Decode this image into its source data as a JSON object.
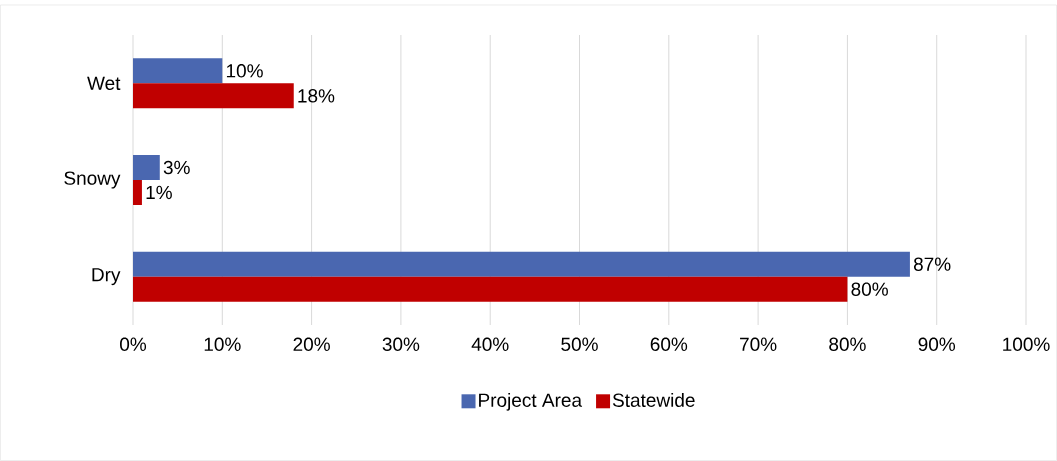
{
  "chart_data": {
    "type": "bar",
    "orientation": "horizontal",
    "categories": [
      "Wet",
      "Snowy",
      "Dry"
    ],
    "series": [
      {
        "name": "Project Area",
        "color": "#4a67b0",
        "values": [
          10,
          3,
          87
        ],
        "value_labels": [
          "10%",
          "3%",
          "87%"
        ]
      },
      {
        "name": "Statewide",
        "color": "#c00000",
        "values": [
          18,
          1,
          80
        ],
        "value_labels": [
          "18%",
          "1%",
          "80%"
        ]
      }
    ],
    "xlim": [
      0,
      100
    ],
    "xticks": [
      {
        "value": 0,
        "label": "0%"
      },
      {
        "value": 10,
        "label": "10%"
      },
      {
        "value": 20,
        "label": "20%"
      },
      {
        "value": 30,
        "label": "30%"
      },
      {
        "value": 40,
        "label": "40%"
      },
      {
        "value": 50,
        "label": "50%"
      },
      {
        "value": 60,
        "label": "60%"
      },
      {
        "value": 70,
        "label": "70%"
      },
      {
        "value": 80,
        "label": "80%"
      },
      {
        "value": 90,
        "label": "90%"
      },
      {
        "value": 100,
        "label": "100%"
      }
    ],
    "grid": "x",
    "legend": "bottom"
  }
}
